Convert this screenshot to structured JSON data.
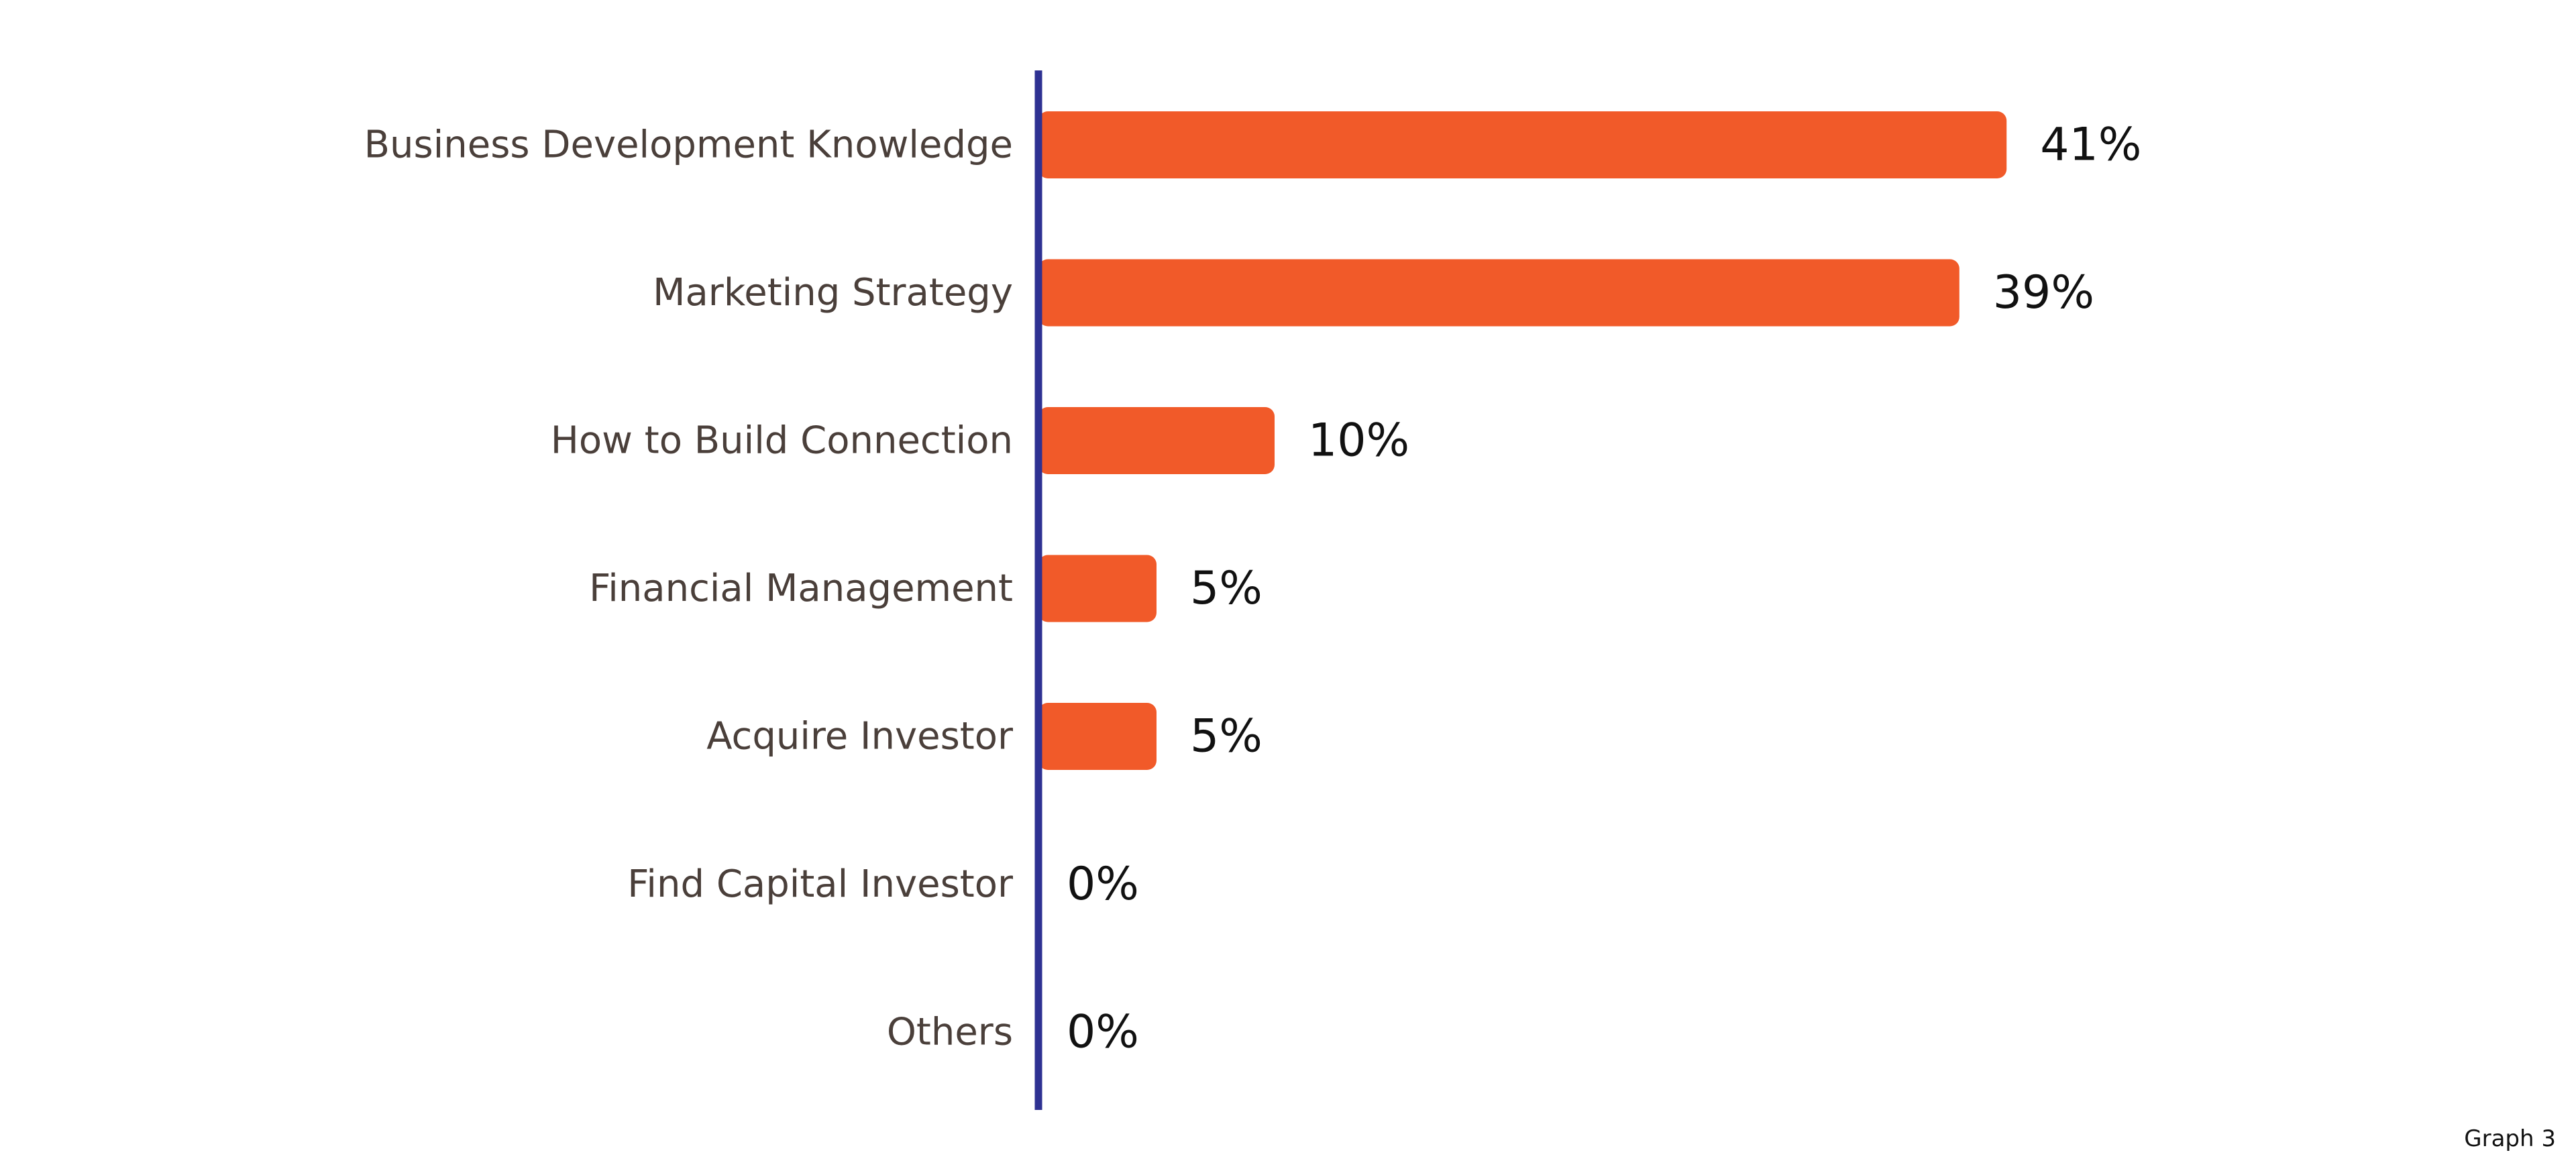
{
  "caption": "Graph 3",
  "colors": {
    "bar": "#f15a29",
    "axis": "#2e3192",
    "category_text": "#4a3f3a",
    "value_text": "#111111"
  },
  "chart_data": {
    "type": "bar",
    "orientation": "horizontal",
    "categories": [
      "Business Development Knowledge",
      "Marketing Strategy",
      "How to Build Connection",
      "Financial Management",
      "Acquire Investor",
      "Find Capital Investor",
      "Others"
    ],
    "values": [
      41,
      39,
      10,
      5,
      5,
      0,
      0
    ],
    "value_labels": [
      "41%",
      "39%",
      "10%",
      "5%",
      "5%",
      "0%",
      "0%"
    ],
    "unit": "%",
    "xlim": [
      0,
      50
    ],
    "grid": false,
    "legend": "none"
  }
}
